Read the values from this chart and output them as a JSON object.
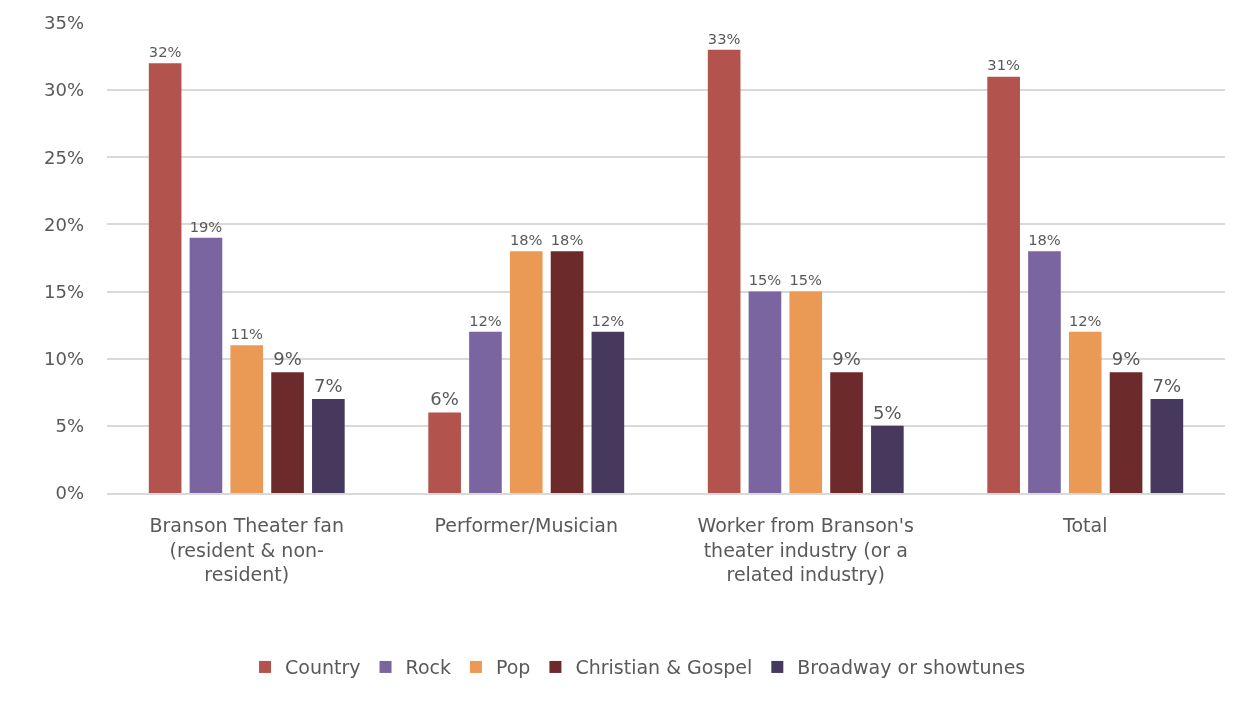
{
  "chart_data": {
    "type": "bar",
    "categories": [
      "Branson Theater fan (resident & non-resident)",
      "Performer/Musician",
      "Worker from Branson's theater industry (or a related industry)",
      "Total"
    ],
    "series": [
      {
        "name": "Country",
        "color": "#b3534e",
        "values": [
          32,
          6,
          33,
          31
        ],
        "value_labels": [
          "32%",
          "6%",
          "33%",
          "31%"
        ]
      },
      {
        "name": "Rock",
        "color": "#7a65a0",
        "values": [
          19,
          12,
          15,
          18
        ],
        "value_labels": [
          "19%",
          "12%",
          "15%",
          "18%"
        ]
      },
      {
        "name": "Pop",
        "color": "#eb9a55",
        "values": [
          11,
          18,
          15,
          12
        ],
        "value_labels": [
          "11%",
          "18%",
          "15%",
          "12%"
        ]
      },
      {
        "name": "Christian & Gospel",
        "color": "#6c2b2a",
        "values": [
          9,
          18,
          9,
          9
        ],
        "value_labels": [
          "9%",
          "18%",
          "9%",
          "9%"
        ]
      },
      {
        "name": "Broadway or showtunes",
        "color": "#47395e",
        "values": [
          7,
          12,
          5,
          7
        ],
        "value_labels": [
          "7%",
          "12%",
          "5%",
          "7%"
        ]
      }
    ],
    "ylim": [
      0,
      35
    ],
    "yticks": [
      {
        "value": 0,
        "label": "0%"
      },
      {
        "value": 5,
        "label": "5%"
      },
      {
        "value": 10,
        "label": "10%"
      },
      {
        "value": 15,
        "label": "15%"
      },
      {
        "value": 20,
        "label": "20%"
      },
      {
        "value": 25,
        "label": "25%"
      },
      {
        "value": 30,
        "label": "30%"
      },
      {
        "value": 35,
        "label": "35%"
      }
    ],
    "grid": "y",
    "legend": "bottom"
  }
}
